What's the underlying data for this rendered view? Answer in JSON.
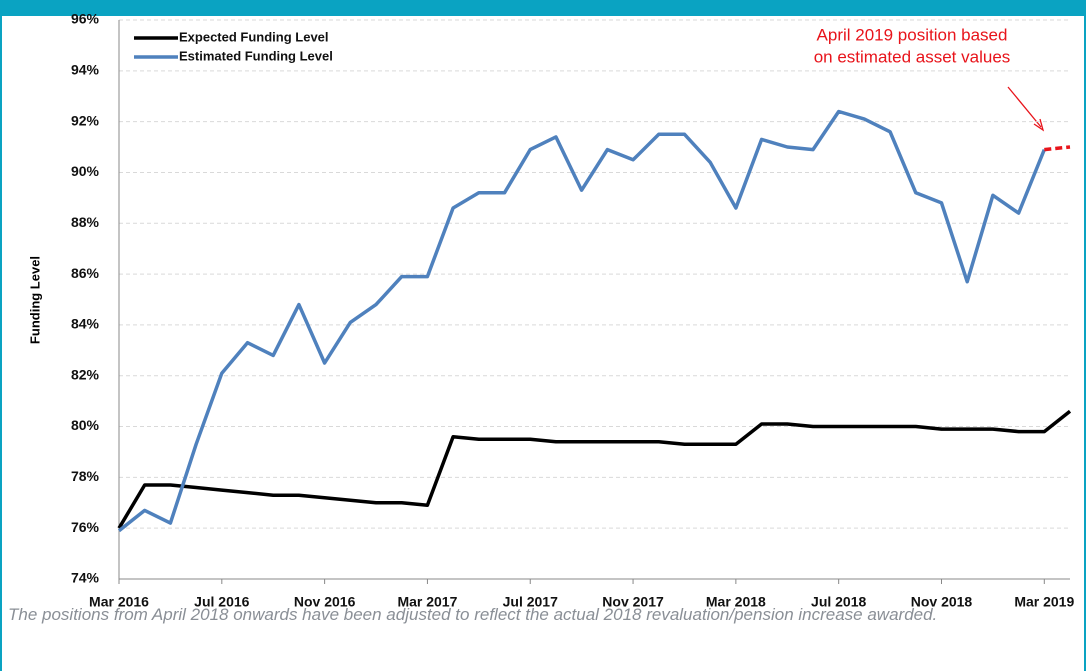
{
  "chart_data": {
    "type": "line",
    "y_label": "Funding Level",
    "annotation": [
      "April 2019 position based",
      "on estimated asset values"
    ],
    "categories": [
      "Mar 2016",
      null,
      null,
      null,
      "Jul 2016",
      null,
      null,
      null,
      "Nov 2016",
      null,
      null,
      null,
      "Mar 2017",
      null,
      null,
      null,
      "Jul 2017",
      null,
      null,
      null,
      "Nov 2017",
      null,
      null,
      null,
      "Mar 2018",
      null,
      null,
      null,
      "Jul 2018",
      null,
      null,
      null,
      "Nov 2018",
      null,
      null,
      null,
      "Mar 2019",
      null
    ],
    "series": [
      {
        "name": "Expected Funding Level",
        "color": "#000000",
        "values": [
          76.0,
          77.7,
          77.7,
          77.6,
          77.5,
          77.4,
          77.3,
          77.3,
          77.2,
          77.1,
          77.0,
          77.0,
          76.9,
          79.6,
          79.5,
          79.5,
          79.5,
          79.4,
          79.4,
          79.4,
          79.4,
          79.4,
          79.3,
          79.3,
          79.3,
          80.1,
          80.1,
          80.0,
          80.0,
          80.0,
          80.0,
          80.0,
          79.9,
          79.9,
          79.9,
          79.8,
          79.8,
          80.6
        ]
      },
      {
        "name": "Estimated Funding Level",
        "color": "#4f81bd",
        "values": [
          75.9,
          76.7,
          76.2,
          79.3,
          82.1,
          83.3,
          82.8,
          84.8,
          82.5,
          84.1,
          84.8,
          85.9,
          85.9,
          88.6,
          89.2,
          89.2,
          90.9,
          91.4,
          89.3,
          90.9,
          90.5,
          91.5,
          91.5,
          90.4,
          88.6,
          91.3,
          91.0,
          90.9,
          92.4,
          92.1,
          91.6,
          89.2,
          88.8,
          85.7,
          89.1,
          88.4,
          90.9,
          null
        ]
      },
      {
        "color": "#e8141b",
        "dashed": true,
        "values": [
          null,
          null,
          null,
          null,
          null,
          null,
          null,
          null,
          null,
          null,
          null,
          null,
          null,
          null,
          null,
          null,
          null,
          null,
          null,
          null,
          null,
          null,
          null,
          null,
          null,
          null,
          null,
          null,
          null,
          null,
          null,
          null,
          null,
          null,
          null,
          null,
          90.9,
          91.0
        ]
      }
    ],
    "ylim": [
      74,
      96
    ],
    "yticks": [
      {
        "value": 74,
        "label": "74%"
      },
      {
        "value": 76,
        "label": "76%"
      },
      {
        "value": 78,
        "label": "78%"
      },
      {
        "value": 80,
        "label": "80%"
      },
      {
        "value": 82,
        "label": "82%"
      },
      {
        "value": 84,
        "label": "84%"
      },
      {
        "value": 86,
        "label": "86%"
      },
      {
        "value": 88,
        "label": "88%"
      },
      {
        "value": 90,
        "label": "90%"
      },
      {
        "value": 92,
        "label": "92%"
      },
      {
        "value": 94,
        "label": "94%"
      },
      {
        "value": 96,
        "label": "96%"
      }
    ],
    "grid": true
  },
  "caption": "The positions from April 2018 onwards have been adjusted to reflect the actual 2018 revaluation/pension increase awarded."
}
